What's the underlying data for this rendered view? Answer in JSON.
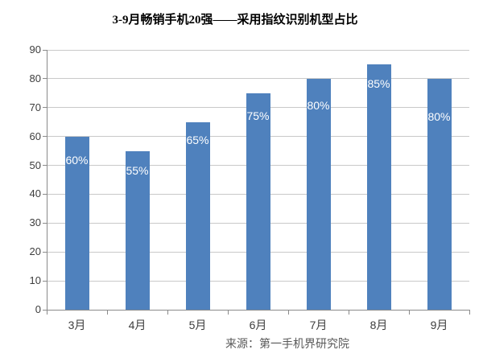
{
  "title": "3-9月畅销手机20强——采用指纹识别机型占比",
  "source": "来源：第一手机界研究院",
  "chart_data": {
    "type": "bar",
    "title": "3-9月畅销手机20强——采用指纹识别机型占比",
    "categories": [
      "3月",
      "4月",
      "5月",
      "6月",
      "7月",
      "8月",
      "9月"
    ],
    "values": [
      60,
      55,
      65,
      75,
      80,
      85,
      80
    ],
    "data_labels": [
      "60%",
      "55%",
      "65%",
      "75%",
      "80%",
      "85%",
      "80%"
    ],
    "xlabel": "",
    "ylabel": "",
    "ylim": [
      0,
      90
    ],
    "yticks": [
      0,
      10,
      20,
      30,
      40,
      50,
      60,
      70,
      80,
      90
    ],
    "grid": true,
    "legend": "none",
    "bar_color": "#4F81BD",
    "data_label_color": "#FFFFFF",
    "gridline_color": "#C9C9C9",
    "axis_color": "#8A8A8A",
    "tick_label_color": "#3D3D3D",
    "source_note": "来源：第一手机界研究院"
  }
}
